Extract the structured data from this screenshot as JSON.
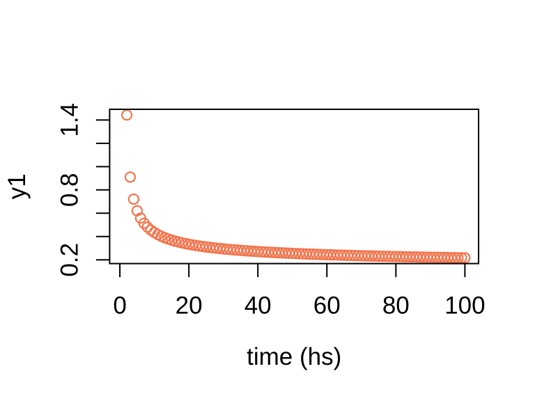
{
  "chart_data": {
    "type": "scatter",
    "title": "",
    "xlabel": "time (hs)",
    "ylabel": "y1",
    "x": [
      1,
      2,
      3,
      4,
      5,
      6,
      7,
      8,
      9,
      10,
      11,
      12,
      13,
      14,
      15,
      16,
      17,
      18,
      19,
      20,
      21,
      22,
      23,
      24,
      25,
      26,
      27,
      28,
      29,
      30,
      31,
      32,
      33,
      34,
      35,
      36,
      37,
      38,
      39,
      40,
      41,
      42,
      43,
      44,
      45,
      46,
      47,
      48,
      49,
      50,
      51,
      52,
      53,
      54,
      55,
      56,
      57,
      58,
      59,
      60,
      61,
      62,
      63,
      64,
      65,
      66,
      67,
      68,
      69,
      70,
      71,
      72,
      73,
      74,
      75,
      76,
      77,
      78,
      79,
      80,
      81,
      82,
      83,
      84,
      85,
      86,
      87,
      88,
      89,
      90,
      91,
      92,
      93,
      94,
      95,
      96,
      97,
      98,
      99,
      100
    ],
    "series": [
      {
        "name": "y1",
        "formula": "1/log(x)",
        "values": [
          null,
          1.4427,
          0.9102,
          0.7213,
          0.6213,
          0.5581,
          0.5139,
          0.4809,
          0.4551,
          0.4343,
          0.417,
          0.4024,
          0.3899,
          0.3789,
          0.3693,
          0.3607,
          0.353,
          0.346,
          0.3396,
          0.3338,
          0.3285,
          0.3235,
          0.3189,
          0.3147,
          0.3107,
          0.3069,
          0.3034,
          0.3001,
          0.297,
          0.294,
          0.2912,
          0.2885,
          0.286,
          0.2836,
          0.2813,
          0.2791,
          0.2769,
          0.2749,
          0.273,
          0.2711,
          0.2693,
          0.2675,
          0.2659,
          0.2643,
          0.2627,
          0.2612,
          0.2597,
          0.2583,
          0.2569,
          0.2556,
          0.2543,
          0.2531,
          0.2519,
          0.2507,
          0.2495,
          0.2484,
          0.2473,
          0.2463,
          0.2452,
          0.2442,
          0.2433,
          0.2423,
          0.2414,
          0.2404,
          0.2396,
          0.2387,
          0.2378,
          0.237,
          0.2362,
          0.2354,
          0.2346,
          0.2338,
          0.2331,
          0.2323,
          0.2316,
          0.2309,
          0.2302,
          0.2295,
          0.2289,
          0.2282,
          0.2276,
          0.2269,
          0.2263,
          0.2257,
          0.2251,
          0.2245,
          0.2239,
          0.2233,
          0.2228,
          0.2222,
          0.2217,
          0.2212,
          0.2206,
          0.2201,
          0.2196,
          0.2191,
          0.2186,
          0.2181,
          0.2176,
          0.2171
        ]
      }
    ],
    "x_ticks": [
      0,
      20,
      40,
      60,
      80,
      100
    ],
    "x_tick_labels": [
      "0",
      "20",
      "40",
      "60",
      "80",
      "100"
    ],
    "y_ticks": [
      0.2,
      0.4,
      0.6,
      0.8,
      1.0,
      1.2,
      1.4
    ],
    "y_tick_labels": [
      "0.2",
      "",
      "",
      "0.8",
      "",
      "",
      "1.4"
    ],
    "xlim": [
      -2.96,
      103.96
    ],
    "ylim": [
      0.1681,
      1.4917
    ],
    "grid": false,
    "legend": null,
    "marker": "open-circle",
    "marker_color": "#F4754D",
    "axis_color": "#000000",
    "background_color": "#FFFFFF"
  }
}
